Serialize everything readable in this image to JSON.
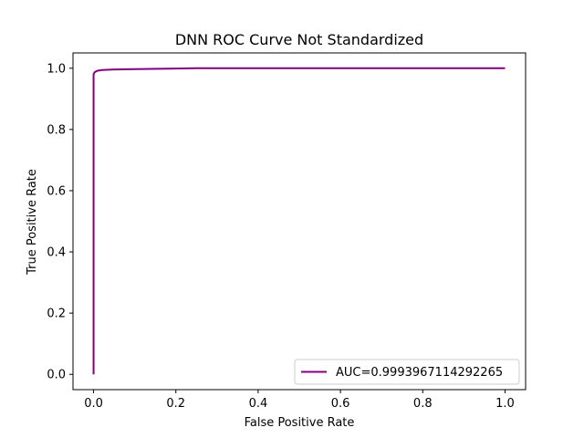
{
  "colors": {
    "curve": "#800080",
    "axes": "#000000",
    "legend_border": "#cccccc",
    "background": "#ffffff"
  },
  "chart_data": {
    "type": "line",
    "title": "DNN ROC Curve Not Standardized",
    "xlabel": "False Positive Rate",
    "ylabel": "True Positive Rate",
    "xlim": [
      -0.05,
      1.05
    ],
    "ylim": [
      -0.05,
      1.05
    ],
    "xticks": [
      "0.0",
      "0.2",
      "0.4",
      "0.6",
      "0.8",
      "1.0"
    ],
    "yticks": [
      "0.0",
      "0.2",
      "0.4",
      "0.6",
      "0.8",
      "1.0"
    ],
    "grid": false,
    "legend_position": "lower-right",
    "series": [
      {
        "name": "AUC=0.9993967114292265",
        "x": [
          0.0,
          0.0,
          0.0,
          0.002,
          0.005,
          0.01,
          0.02,
          0.05,
          0.1,
          0.2,
          0.25,
          0.5,
          1.0
        ],
        "y": [
          0.0,
          0.5,
          0.98,
          0.986,
          0.989,
          0.992,
          0.994,
          0.996,
          0.997,
          0.999,
          1.0,
          1.0,
          1.0
        ]
      }
    ]
  }
}
